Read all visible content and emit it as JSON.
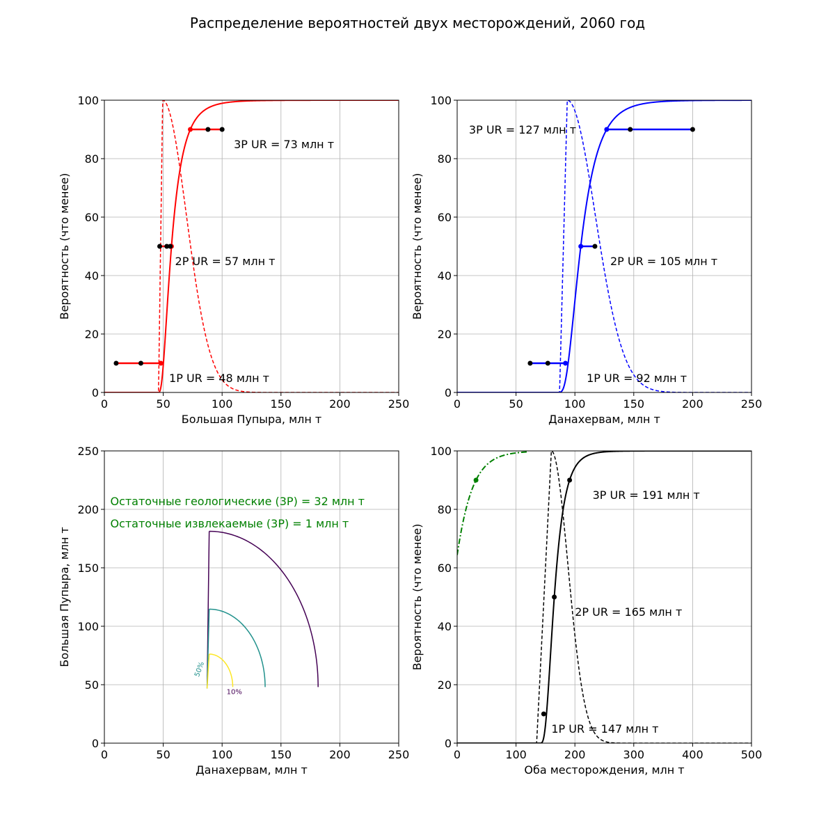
{
  "figure": {
    "title": "Распределение вероятностей двух месторождений, 2060 год"
  },
  "chart_data": [
    {
      "id": "p1",
      "type": "line",
      "xlabel": "Большая Пупыра, млн т",
      "ylabel": "Вероятность (что менее)",
      "xlim": [
        0,
        250
      ],
      "ylim": [
        0,
        100
      ],
      "xticks": [
        0,
        50,
        100,
        150,
        200,
        250
      ],
      "yticks": [
        0,
        20,
        40,
        60,
        80,
        100
      ],
      "grid": true,
      "color": "#ff0000",
      "cdf": {
        "start": 45,
        "p10": 48,
        "p50": 57,
        "p90": 73
      },
      "pdf": {
        "start": 46,
        "peak": 49.5,
        "end": 110
      },
      "ranges": [
        {
          "p": 10,
          "points": [
            10,
            31,
            48
          ]
        },
        {
          "p": 50,
          "points": [
            47,
            53,
            56
          ]
        },
        {
          "p": 90,
          "points": [
            73,
            88,
            100
          ]
        }
      ],
      "annotations": [
        {
          "text": "1P UR = 48 млн т",
          "x": 55,
          "y": 5
        },
        {
          "text": "2P UR = 57 млн т",
          "x": 60,
          "y": 45
        },
        {
          "text": "3P UR = 73 млн т",
          "x": 110,
          "y": 85
        }
      ]
    },
    {
      "id": "p2",
      "type": "line",
      "xlabel": "Данахервам, млн т",
      "ylabel": "Вероятность (что менее)",
      "xlim": [
        0,
        250
      ],
      "ylim": [
        0,
        100
      ],
      "xticks": [
        0,
        50,
        100,
        150,
        200,
        250
      ],
      "yticks": [
        0,
        20,
        40,
        60,
        80,
        100
      ],
      "grid": true,
      "color": "#0000ff",
      "cdf": {
        "start": 84,
        "p10": 92,
        "p50": 105,
        "p90": 127
      },
      "pdf": {
        "start": 87,
        "peak": 93.5,
        "end": 165
      },
      "ranges": [
        {
          "p": 10,
          "points": [
            62,
            77,
            92
          ]
        },
        {
          "p": 50,
          "points": [
            105,
            117
          ]
        },
        {
          "p": 90,
          "points": [
            127,
            147,
            200
          ]
        }
      ],
      "annotations": [
        {
          "text": "1P UR = 92 млн т",
          "x": 110,
          "y": 5
        },
        {
          "text": "2P UR = 105 млн т",
          "x": 130,
          "y": 45
        },
        {
          "text": "3P UR = 127 млн т",
          "x": 10,
          "y": 90
        }
      ]
    },
    {
      "id": "p3",
      "type": "contour",
      "xlabel": "Данахервам, млн т",
      "ylabel": "Большая Пупыра, млн т",
      "xlim": [
        0,
        250
      ],
      "ylim": [
        0,
        250
      ],
      "xticks": [
        0,
        50,
        100,
        150,
        200,
        250
      ],
      "yticks": [
        0,
        50,
        100,
        150,
        200,
        250
      ],
      "grid": true,
      "contours": [
        {
          "label": "10%",
          "color": "#440154",
          "r": [
            0.37,
            0.26
          ]
        },
        {
          "label": "50%",
          "color": "#21918c",
          "r": [
            0.19,
            0.13
          ]
        },
        {
          "label": "",
          "color": "#fde725",
          "r": [
            0.08,
            0.055
          ]
        }
      ],
      "center": [
        92,
        48
      ],
      "annotations": [
        {
          "text": "Остаточные геологические (3P) = 32 млн т",
          "x": 5,
          "y": 207,
          "color": "#008000"
        },
        {
          "text": "Остаточные извлекаемые (3P) = 1 млн т",
          "x": 5,
          "y": 188,
          "color": "#008000"
        }
      ]
    },
    {
      "id": "p4",
      "type": "line",
      "xlabel": "Оба месторождения, млн т",
      "ylabel": "Вероятность (что менее)",
      "xlim": [
        0,
        500
      ],
      "ylim": [
        0,
        100
      ],
      "xticks": [
        0,
        100,
        200,
        300,
        400,
        500
      ],
      "yticks": [
        0,
        20,
        40,
        60,
        80,
        100
      ],
      "grid": true,
      "color": "#000000",
      "cdf": {
        "start": 138,
        "p10": 147,
        "p50": 165,
        "p90": 191
      },
      "pdf": {
        "start": 135,
        "peak": 160,
        "end": 245
      },
      "residual": {
        "color": "#008000",
        "x0": 0,
        "y0": 36,
        "p90": 32
      },
      "points": [
        {
          "x": 147,
          "y": 10
        },
        {
          "x": 165,
          "y": 50
        },
        {
          "x": 191,
          "y": 90
        }
      ],
      "annotations": [
        {
          "text": "1P UR = 147 млн т",
          "x": 160,
          "y": 5
        },
        {
          "text": "2P UR = 165 млн т",
          "x": 200,
          "y": 45
        },
        {
          "text": "3P UR = 191 млн т",
          "x": 230,
          "y": 85
        }
      ]
    }
  ]
}
